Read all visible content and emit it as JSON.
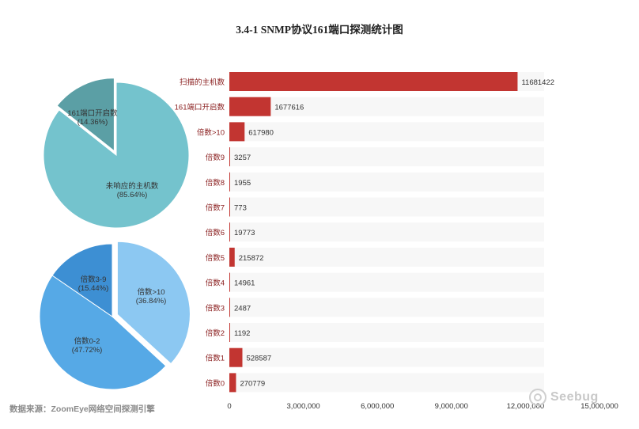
{
  "title": "3.4-1 SNMP协议161端口探测统计图",
  "source": "数据来源：ZoomEye网络空间探测引擎",
  "watermark": "Seebug",
  "watermark_icon": "seebug-logo-icon",
  "colors": {
    "bar": "#c23531",
    "row_bg": "#f7f7f7",
    "category_label": "#8b2020",
    "pie1_main": "#74c3cd",
    "pie1_small": "#5b9fa5",
    "pie2_a": "#8cc8f2",
    "pie2_b": "#56a9e6",
    "pie2_c": "#3d8fd3"
  },
  "chart_data": [
    {
      "type": "pie",
      "slices": [
        {
          "label": "161端口开启数",
          "percent_label": "(14.36%)",
          "value": 14.36
        },
        {
          "label": "未响应的主机数",
          "percent_label": "(85.64%)",
          "value": 85.64
        }
      ]
    },
    {
      "type": "pie",
      "slices": [
        {
          "label": "倍数>10",
          "percent_label": "(36.84%)",
          "value": 36.84
        },
        {
          "label": "倍数0-2",
          "percent_label": "(47.72%)",
          "value": 47.72
        },
        {
          "label": "倍数3-9",
          "percent_label": "(15.44%)",
          "value": 15.44
        }
      ]
    },
    {
      "type": "bar",
      "orientation": "horizontal",
      "categories": [
        "扫描的主机数",
        "161端口开启数",
        "倍数>10",
        "倍数9",
        "倍数8",
        "倍数7",
        "倍数6",
        "倍数5",
        "倍数4",
        "倍数3",
        "倍数2",
        "倍数1",
        "倍数0"
      ],
      "values": [
        11681422,
        1677616,
        617980,
        3257,
        1955,
        773,
        19773,
        215872,
        14961,
        2487,
        1192,
        528587,
        270779
      ],
      "xlim": [
        0,
        15000000
      ],
      "xticks": [
        "0",
        "3,000,000",
        "6,000,000",
        "9,000,000",
        "12,000,000",
        "15,000,000"
      ],
      "tick_values": [
        0,
        3000000,
        6000000,
        9000000,
        12000000,
        15000000
      ]
    }
  ]
}
